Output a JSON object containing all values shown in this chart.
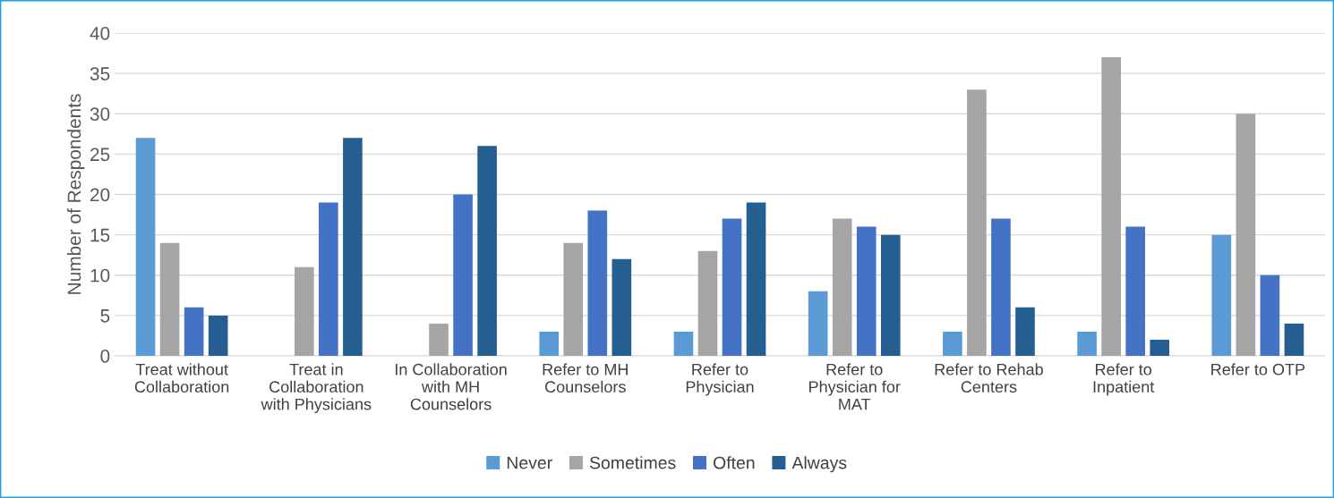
{
  "chart_data": {
    "type": "bar",
    "ylabel": "Number of Respondents",
    "categories": [
      "Treat without Collaboration",
      "Treat in Collaboration with Physicians",
      "In Collaboration with MH Counselors",
      "Refer to MH Counselors",
      "Refer to Physician",
      "Refer to Physician for MAT",
      "Refer to Rehab Centers",
      "Refer to Inpatient",
      "Refer to OTP"
    ],
    "series": [
      {
        "name": "Never",
        "color": "#5b9bd5",
        "values": [
          27,
          0,
          0,
          3,
          3,
          8,
          3,
          3,
          15
        ]
      },
      {
        "name": "Sometimes",
        "color": "#a5a5a5",
        "values": [
          14,
          11,
          4,
          14,
          13,
          17,
          33,
          37,
          30
        ]
      },
      {
        "name": "Often",
        "color": "#4472c4",
        "values": [
          6,
          19,
          20,
          18,
          17,
          16,
          17,
          16,
          10
        ]
      },
      {
        "name": "Always",
        "color": "#255e91",
        "values": [
          5,
          27,
          26,
          12,
          19,
          15,
          6,
          2,
          4
        ]
      }
    ],
    "ylim": [
      0,
      40
    ],
    "yticks": [
      0,
      5,
      10,
      15,
      20,
      25,
      30,
      35,
      40
    ],
    "grid": "y",
    "legend": "bottom"
  }
}
